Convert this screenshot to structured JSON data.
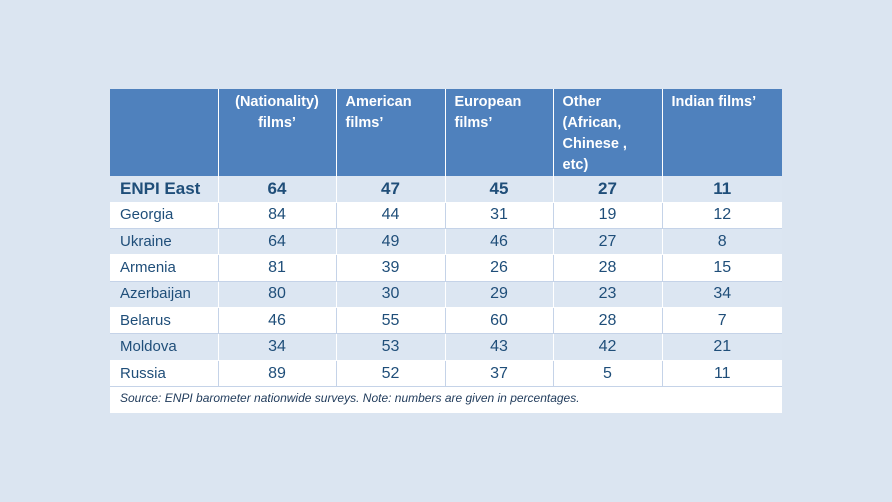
{
  "table": {
    "headers": [
      "",
      "(Nationality) films’",
      "American films’",
      "European films’",
      "Other (African, Chinese , etc)",
      "Indian films’"
    ],
    "summary_row": {
      "label": "ENPI East",
      "values": [
        "64",
        "47",
        "45",
        "27",
        "11"
      ]
    },
    "rows": [
      {
        "label": "Georgia",
        "values": [
          "84",
          "44",
          "31",
          "19",
          "12"
        ]
      },
      {
        "label": "Ukraine",
        "values": [
          "64",
          "49",
          "46",
          "27",
          "8"
        ]
      },
      {
        "label": "Armenia",
        "values": [
          "81",
          "39",
          "26",
          "28",
          "15"
        ]
      },
      {
        "label": "Azerbaijan",
        "values": [
          "80",
          "30",
          "29",
          "23",
          "34"
        ]
      },
      {
        "label": "Belarus",
        "values": [
          "46",
          "55",
          "60",
          "28",
          "7"
        ]
      },
      {
        "label": "Moldova",
        "values": [
          "34",
          "53",
          "43",
          "42",
          "21"
        ]
      },
      {
        "label": "Russia",
        "values": [
          "89",
          "52",
          "37",
          "5",
          "11"
        ]
      }
    ]
  },
  "source_note": "Source: ENPI barometer nationwide surveys. Note: numbers are given in percentages.",
  "colors": {
    "header_bg": "#4f81bd",
    "band_bg": "#dce6f2",
    "page_bg": "#dbe5f1",
    "text": "#1f4e79"
  }
}
